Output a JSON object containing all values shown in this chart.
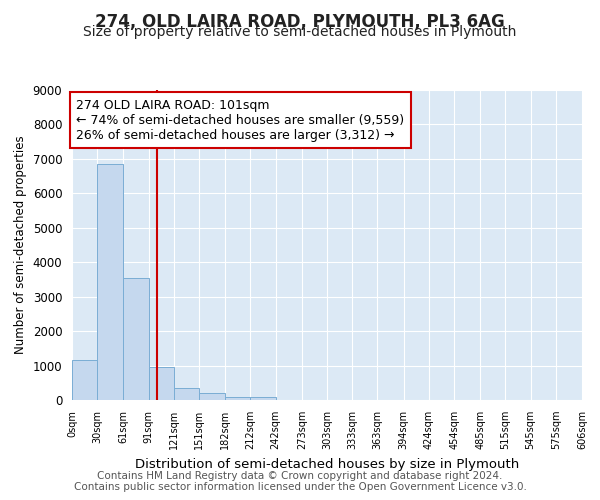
{
  "title": "274, OLD LAIRA ROAD, PLYMOUTH, PL3 6AG",
  "subtitle": "Size of property relative to semi-detached houses in Plymouth",
  "xlabel": "Distribution of semi-detached houses by size in Plymouth",
  "ylabel": "Number of semi-detached properties",
  "bin_edges": [
    0,
    30,
    61,
    91,
    121,
    151,
    182,
    212,
    242,
    273,
    303,
    333,
    363,
    394,
    424,
    454,
    485,
    515,
    545,
    575,
    606
  ],
  "bar_heights": [
    1150,
    6850,
    3550,
    950,
    350,
    200,
    100,
    100,
    0,
    0,
    0,
    0,
    0,
    0,
    0,
    0,
    0,
    0,
    0,
    0
  ],
  "bar_color": "#c5d8ee",
  "bar_edge_color": "#7aadd4",
  "ylim": [
    0,
    9000
  ],
  "yticks": [
    0,
    1000,
    2000,
    3000,
    4000,
    5000,
    6000,
    7000,
    8000,
    9000
  ],
  "property_size": 101,
  "red_line_color": "#cc0000",
  "annotation_line1": "274 OLD LAIRA ROAD: 101sqm",
  "annotation_line2": "← 74% of semi-detached houses are smaller (9,559)",
  "annotation_line3": "26% of semi-detached houses are larger (3,312) →",
  "annotation_box_color": "#ffffff",
  "annotation_box_edge_color": "#cc0000",
  "footer_text": "Contains HM Land Registry data © Crown copyright and database right 2024.\nContains public sector information licensed under the Open Government Licence v3.0.",
  "background_color": "#ffffff",
  "plot_background_color": "#dce9f5",
  "title_fontsize": 12,
  "subtitle_fontsize": 10,
  "annotation_fontsize": 9,
  "footer_fontsize": 7.5,
  "x_tick_labels": [
    "0sqm",
    "30sqm",
    "61sqm",
    "91sqm",
    "121sqm",
    "151sqm",
    "182sqm",
    "212sqm",
    "242sqm",
    "273sqm",
    "303sqm",
    "333sqm",
    "363sqm",
    "394sqm",
    "424sqm",
    "454sqm",
    "485sqm",
    "515sqm",
    "545sqm",
    "575sqm",
    "606sqm"
  ]
}
